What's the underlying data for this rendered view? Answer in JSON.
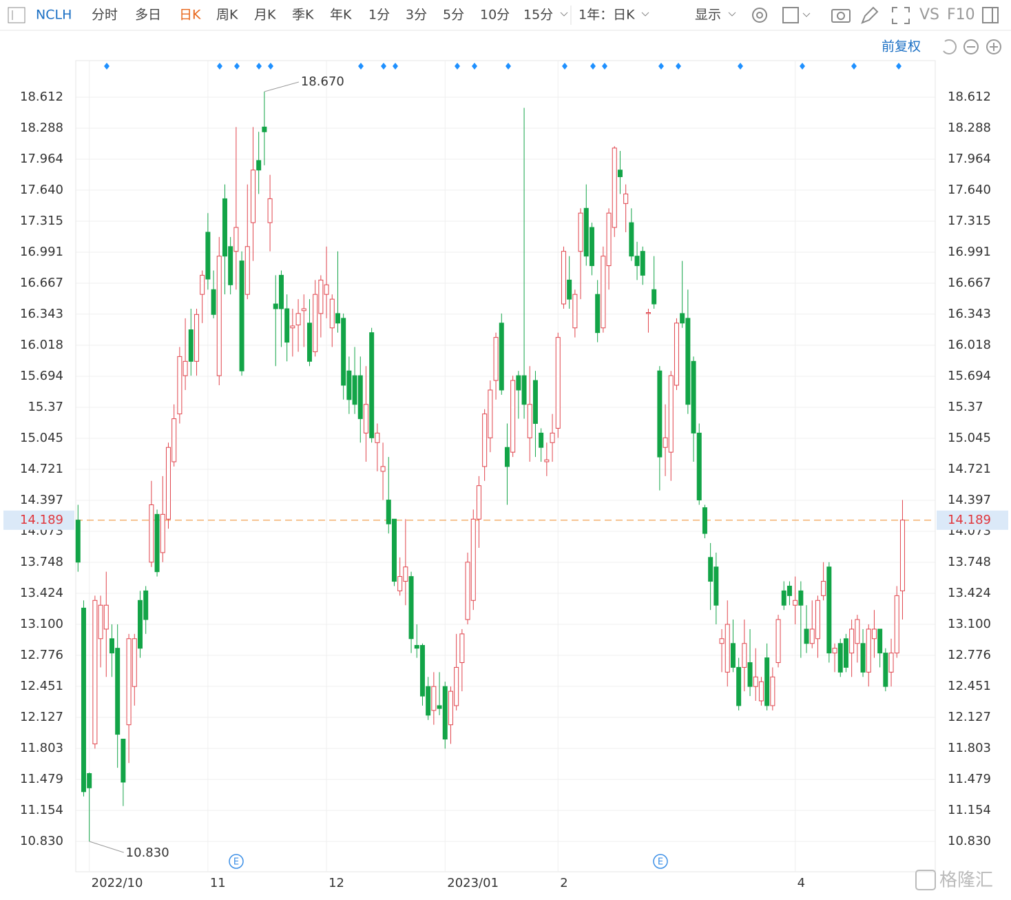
{
  "toolbar": {
    "symbol": "NCLH",
    "periods": [
      "分时",
      "多日",
      "日K",
      "周K",
      "月K",
      "季K",
      "年K",
      "1分",
      "3分",
      "5分",
      "10分",
      "15分"
    ],
    "active_period": "日K",
    "range": "1年：日K",
    "display": "显示",
    "vs": "VS",
    "f10": "F10",
    "adjust": "前复权"
  },
  "watermark": "格隆汇",
  "chart_data": {
    "type": "candlestick",
    "open": [
      14.19,
      13.27,
      11.54,
      11.85,
      12.95,
      13.05,
      12.95,
      12.85,
      11.9,
      12.05,
      12.45,
      13.35,
      13.45,
      13.75,
      14.25,
      13.85,
      14.2,
      14.8,
      15.3,
      15.7,
      16.18,
      15.85,
      16.55,
      17.2,
      16.6,
      15.7,
      17.55,
      17.05,
      17.0,
      16.9,
      16.55,
      17.3,
      17.95,
      18.3,
      17.3,
      16.45,
      16.75,
      16.4,
      16.2,
      16.23,
      16.38,
      16.25,
      15.95,
      16.35,
      16.55,
      16.2,
      16.35,
      16.3,
      15.75,
      15.7,
      15.7,
      15.1,
      16.15,
      15.0,
      14.7,
      14.4,
      14.2,
      13.45,
      13.55,
      13.6,
      12.88,
      12.88,
      12.45,
      12.2,
      12.25,
      12.45,
      12.05,
      12.25,
      12.7,
      13.15,
      13.35,
      14.2,
      14.75,
      15.05,
      15.65,
      16.25,
      14.95,
      14.9,
      15.7,
      15.7,
      15.05,
      15.65,
      15.1,
      14.8,
      15.0,
      15.15,
      16.45,
      16.7,
      16.2,
      17.0,
      17.45,
      17.25,
      16.55,
      16.2,
      16.85,
      17.25,
      17.85,
      17.5,
      17.3,
      16.95,
      17.0,
      16.35,
      16.6,
      15.75,
      14.95,
      14.9,
      15.6,
      16.35,
      16.3,
      15.85,
      15.1,
      14.32,
      13.8,
      13.7,
      12.9,
      12.6,
      12.9,
      12.65,
      12.65,
      12.7,
      12.45,
      12.3,
      12.75,
      12.25,
      12.7,
      13.45,
      13.5,
      13.3,
      13.45,
      13.05,
      12.9,
      12.95,
      13.4,
      13.7,
      12.8,
      12.9,
      12.95,
      12.8,
      12.9,
      12.9,
      12.6,
      12.95,
      13.05,
      12.8,
      12.6,
      12.8,
      13.45
    ],
    "high": [
      14.35,
      13.35,
      11.55,
      13.4,
      13.4,
      13.65,
      13.1,
      13.1,
      11.9,
      13.0,
      13.0,
      13.45,
      13.5,
      14.6,
      14.3,
      14.65,
      15.0,
      15.4,
      16.0,
      16.3,
      16.4,
      16.4,
      16.8,
      17.4,
      16.8,
      17.15,
      17.7,
      17.15,
      18.3,
      17.0,
      17.7,
      18.3,
      18.25,
      18.67,
      17.8,
      16.75,
      16.8,
      16.55,
      16.4,
      16.5,
      16.55,
      16.5,
      16.7,
      16.75,
      17.05,
      16.55,
      17.0,
      16.35,
      15.9,
      16.0,
      15.9,
      15.8,
      16.2,
      15.2,
      15.0,
      14.85,
      14.2,
      13.8,
      14.2,
      13.65,
      13.1,
      12.9,
      12.55,
      12.6,
      12.6,
      12.5,
      12.45,
      13.0,
      13.05,
      13.85,
      14.3,
      14.65,
      15.35,
      15.65,
      16.15,
      16.35,
      15.2,
      15.7,
      15.75,
      18.5,
      15.8,
      15.75,
      15.15,
      15.0,
      15.3,
      16.15,
      17.05,
      16.95,
      16.6,
      17.45,
      17.7,
      17.3,
      16.7,
      17.05,
      17.45,
      18.1,
      18.05,
      17.7,
      17.45,
      17.1,
      17.05,
      16.4,
      16.95,
      15.8,
      15.4,
      15.75,
      16.3,
      16.9,
      16.6,
      15.9,
      15.2,
      14.35,
      13.95,
      13.85,
      13.05,
      13.35,
      13.15,
      12.75,
      13.15,
      13.05,
      12.85,
      12.55,
      12.9,
      12.65,
      13.2,
      13.55,
      13.55,
      13.6,
      13.55,
      13.3,
      13.35,
      13.4,
      13.75,
      13.75,
      12.9,
      12.95,
      13.0,
      13.15,
      13.2,
      13.05,
      13.1,
      13.25,
      13.05,
      12.85,
      12.95,
      13.5,
      14.4
    ],
    "low": [
      13.65,
      11.3,
      10.83,
      11.8,
      12.65,
      12.55,
      12.55,
      11.6,
      11.2,
      11.65,
      12.25,
      12.75,
      13.0,
      13.7,
      13.6,
      13.75,
      14.1,
      14.75,
      15.2,
      15.55,
      15.7,
      15.7,
      16.25,
      16.6,
      16.3,
      15.6,
      16.55,
      16.55,
      16.6,
      15.7,
      16.5,
      16.9,
      17.6,
      17.9,
      17.0,
      15.8,
      16.0,
      15.85,
      15.9,
      15.95,
      16.0,
      15.8,
      15.9,
      16.1,
      16.3,
      16.0,
      16.15,
      15.45,
      15.3,
      15.3,
      15.0,
      14.8,
      15.0,
      14.7,
      14.4,
      14.05,
      13.5,
      13.4,
      13.3,
      12.8,
      12.75,
      12.25,
      12.1,
      12.05,
      12.15,
      11.8,
      11.85,
      12.2,
      12.4,
      13.1,
      13.25,
      13.9,
      14.6,
      14.9,
      15.45,
      15.5,
      14.35,
      14.85,
      15.25,
      15.25,
      14.8,
      14.85,
      14.8,
      14.65,
      14.8,
      15.05,
      16.4,
      16.4,
      16.1,
      16.5,
      16.85,
      16.75,
      16.05,
      16.15,
      16.6,
      17.15,
      17.6,
      17.2,
      16.9,
      16.7,
      16.65,
      16.15,
      16.4,
      14.5,
      14.65,
      14.6,
      15.55,
      16.2,
      15.3,
      14.8,
      14.35,
      14.0,
      13.25,
      13.1,
      12.6,
      12.45,
      12.6,
      12.2,
      12.4,
      12.35,
      12.3,
      12.25,
      12.2,
      12.2,
      12.65,
      13.25,
      13.3,
      13.1,
      12.75,
      12.8,
      12.85,
      12.75,
      13.35,
      12.7,
      12.6,
      12.55,
      12.6,
      12.55,
      12.7,
      12.55,
      12.45,
      12.75,
      12.65,
      12.4,
      12.45,
      12.75,
      13.15
    ],
    "close": [
      13.75,
      11.35,
      11.39,
      13.35,
      13.3,
      13.3,
      12.8,
      11.95,
      11.45,
      12.95,
      12.95,
      12.85,
      13.15,
      14.35,
      13.65,
      14.25,
      14.95,
      15.25,
      15.9,
      15.85,
      15.85,
      16.34,
      16.75,
      16.71,
      16.34,
      16.95,
      16.95,
      16.65,
      17.25,
      15.75,
      17.05,
      17.85,
      17.85,
      18.25,
      17.55,
      16.4,
      16.4,
      16.05,
      16.22,
      16.35,
      16.4,
      15.85,
      16.55,
      16.7,
      16.65,
      16.5,
      16.25,
      15.6,
      15.45,
      15.4,
      15.25,
      15.4,
      15.05,
      15.1,
      14.75,
      14.15,
      13.55,
      13.6,
      13.7,
      12.95,
      12.85,
      12.35,
      12.15,
      12.45,
      12.22,
      11.9,
      12.4,
      12.65,
      13.0,
      13.75,
      14.2,
      14.55,
      15.3,
      15.55,
      16.1,
      15.55,
      14.75,
      15.65,
      15.55,
      15.4,
      15.4,
      15.2,
      14.95,
      14.82,
      15.1,
      16.1,
      17.0,
      16.5,
      16.55,
      17.4,
      16.95,
      16.85,
      16.15,
      16.95,
      17.4,
      18.08,
      17.78,
      17.6,
      16.95,
      16.85,
      16.75,
      16.36,
      16.45,
      14.85,
      15.05,
      15.7,
      16.25,
      16.25,
      15.4,
      15.1,
      14.4,
      14.05,
      13.55,
      13.3,
      12.95,
      13.1,
      12.65,
      12.25,
      12.9,
      12.45,
      12.55,
      12.5,
      12.25,
      12.55,
      13.15,
      13.3,
      13.4,
      13.35,
      13.3,
      12.9,
      13.05,
      13.35,
      13.55,
      12.8,
      12.85,
      12.6,
      12.65,
      13.05,
      13.15,
      12.6,
      13.05,
      13.05,
      12.8,
      12.45,
      12.8,
      13.4,
      14.19
    ],
    "up_color": "#e0424a",
    "down_color": "#12a447",
    "ylim": [
      10.513,
      18.994
    ],
    "yticks": [
      18.612,
      18.288,
      17.964,
      {
        "value": 17.64,
        "label": "17.640"
      },
      17.315,
      16.991,
      16.667,
      16.343,
      16.018,
      15.694,
      15.37,
      15.045,
      14.721,
      14.397,
      14.073,
      13.748,
      13.424,
      {
        "value": 13.1,
        "label": "13.100"
      },
      12.776,
      12.451,
      12.127,
      11.803,
      11.479,
      11.154,
      {
        "value": 10.83,
        "label": "10.830"
      }
    ],
    "xlim": [
      -0.4,
      151.8
    ],
    "xticks": [
      {
        "value": 2,
        "label": "2022/10"
      },
      {
        "value": 23,
        "label": "11"
      },
      {
        "value": 44,
        "label": "12"
      },
      {
        "value": 65,
        "label": "2023/01"
      },
      {
        "value": 85,
        "label": "2"
      },
      {
        "value": 127,
        "label": "4"
      }
    ],
    "grid": true,
    "last_price": 14.189,
    "annotations": {
      "max_label": "18.670",
      "min_label": "10.830",
      "event_marker": "E"
    }
  }
}
